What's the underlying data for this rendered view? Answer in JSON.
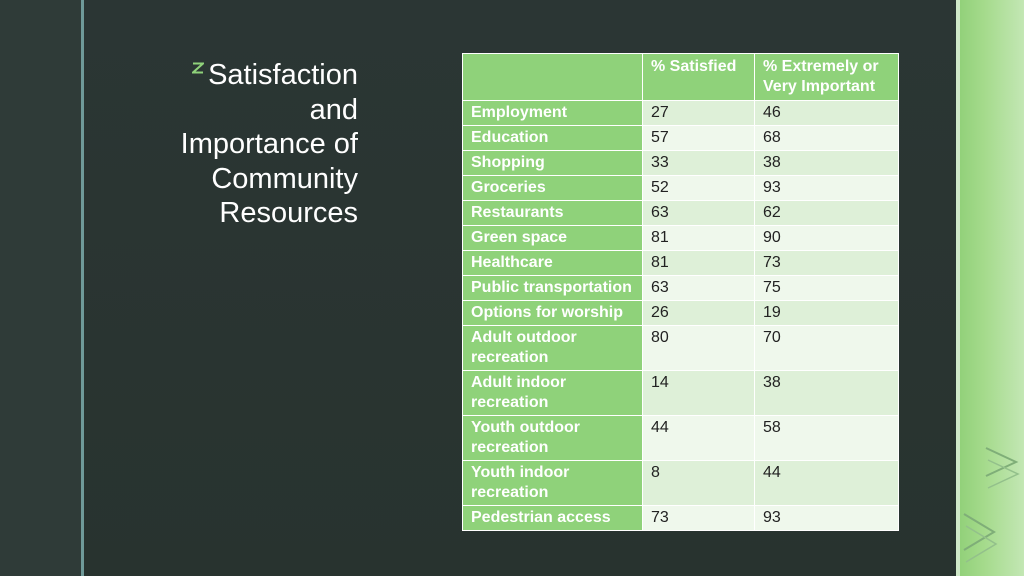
{
  "slide": {
    "title": "Satisfaction\nand\nImportance of\nCommunity\nResources",
    "title_icon": "z-logo-icon",
    "decoration_icon": "chevron-right-icon",
    "colors": {
      "background": "#263230",
      "accent_green": "#8fd27a",
      "row_light": "#eff8ec",
      "row_mid": "#def0d8",
      "rule_teal": "#6f9a99"
    }
  },
  "table": {
    "headers": [
      "",
      "% Satisfied",
      "% Extremely or Very Important"
    ],
    "rows": [
      {
        "resource": "Employment",
        "satisfied": "27",
        "important": "46"
      },
      {
        "resource": "Education",
        "satisfied": "57",
        "important": "68"
      },
      {
        "resource": "Shopping",
        "satisfied": "33",
        "important": "38"
      },
      {
        "resource": "Groceries",
        "satisfied": "52",
        "important": "93"
      },
      {
        "resource": "Restaurants",
        "satisfied": "63",
        "important": "62"
      },
      {
        "resource": "Green space",
        "satisfied": "81",
        "important": "90"
      },
      {
        "resource": "Healthcare",
        "satisfied": "81",
        "important": "73"
      },
      {
        "resource": "Public transportation",
        "satisfied": "63",
        "important": "75"
      },
      {
        "resource": "Options for worship",
        "satisfied": "26",
        "important": "19"
      },
      {
        "resource": "Adult outdoor recreation",
        "satisfied": "80",
        "important": "70"
      },
      {
        "resource": "Adult indoor recreation",
        "satisfied": "14",
        "important": "38"
      },
      {
        "resource": "Youth outdoor recreation",
        "satisfied": "44",
        "important": "58"
      },
      {
        "resource": "Youth indoor recreation",
        "satisfied": "8",
        "important": "44"
      },
      {
        "resource": "Pedestrian access",
        "satisfied": "73",
        "important": "93"
      }
    ]
  }
}
